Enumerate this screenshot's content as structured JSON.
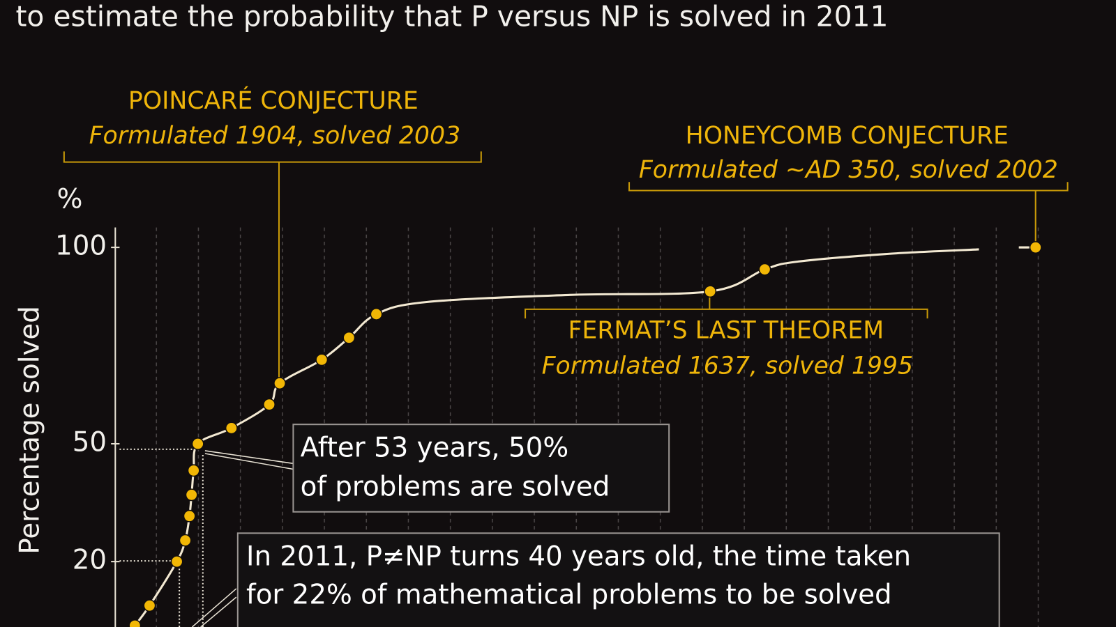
{
  "chart_data": {
    "type": "line",
    "title": "to estimate the probability that P versus NP is solved in 2011",
    "y_unit": "%",
    "ylabel": "Percentage solved",
    "ylim": [
      3.35,
      105.07
    ],
    "yticks": [
      20,
      50,
      100
    ],
    "xlim": [
      0,
      23.5
    ],
    "grid": true,
    "series": [
      {
        "name": "curve",
        "color": "#f3e9d2",
        "x": [
          0.5,
          0.85,
          1.5,
          1.7,
          1.8,
          1.85,
          1.9,
          2.0,
          2.8,
          3.7,
          3.95,
          4.95,
          5.6,
          6.25,
          7.45,
          10.85,
          14.2,
          15.5,
          16.3,
          18.5,
          20.6,
          null,
          21.55,
          21.95
        ],
        "values": [
          3.7,
          8.8,
          20,
          25.4,
          31.6,
          37,
          43.2,
          50,
          54,
          60,
          65.4,
          71.4,
          77,
          83,
          86.1,
          87.9,
          88.8,
          94.4,
          96.4,
          98.4,
          99.5,
          null,
          100,
          100
        ]
      },
      {
        "name": "problems",
        "color": "#f2b705",
        "x": [
          0.5,
          0.85,
          1.5,
          1.7,
          1.8,
          1.85,
          1.9,
          2.0,
          2.8,
          3.7,
          3.95,
          4.95,
          5.6,
          6.25,
          14.2,
          15.5,
          21.95
        ],
        "values": [
          3.7,
          8.8,
          20,
          25.4,
          31.6,
          37,
          43.2,
          50,
          54,
          60,
          65.4,
          71.4,
          77,
          83,
          88.8,
          94.4,
          100
        ]
      }
    ],
    "annotations": {
      "poincare": {
        "title": "POINCARÉ CONJECTURE",
        "subtitle": "Formulated 1904, solved 2003"
      },
      "honeycomb": {
        "title": "HONEYCOMB CONJECTURE",
        "subtitle": "Formulated ~AD 350, solved 2002"
      },
      "fermat": {
        "title": "FERMAT’S LAST THEOREM",
        "subtitle": "Formulated 1637, solved 1995"
      },
      "half": {
        "lines": [
          "After 53 years, 50%",
          "of problems are solved"
        ]
      },
      "pnp": {
        "lines": [
          "In 2011, P≠NP turns 40 years old, the time taken",
          "for 22% of mathematical problems to be solved"
        ]
      }
    }
  }
}
